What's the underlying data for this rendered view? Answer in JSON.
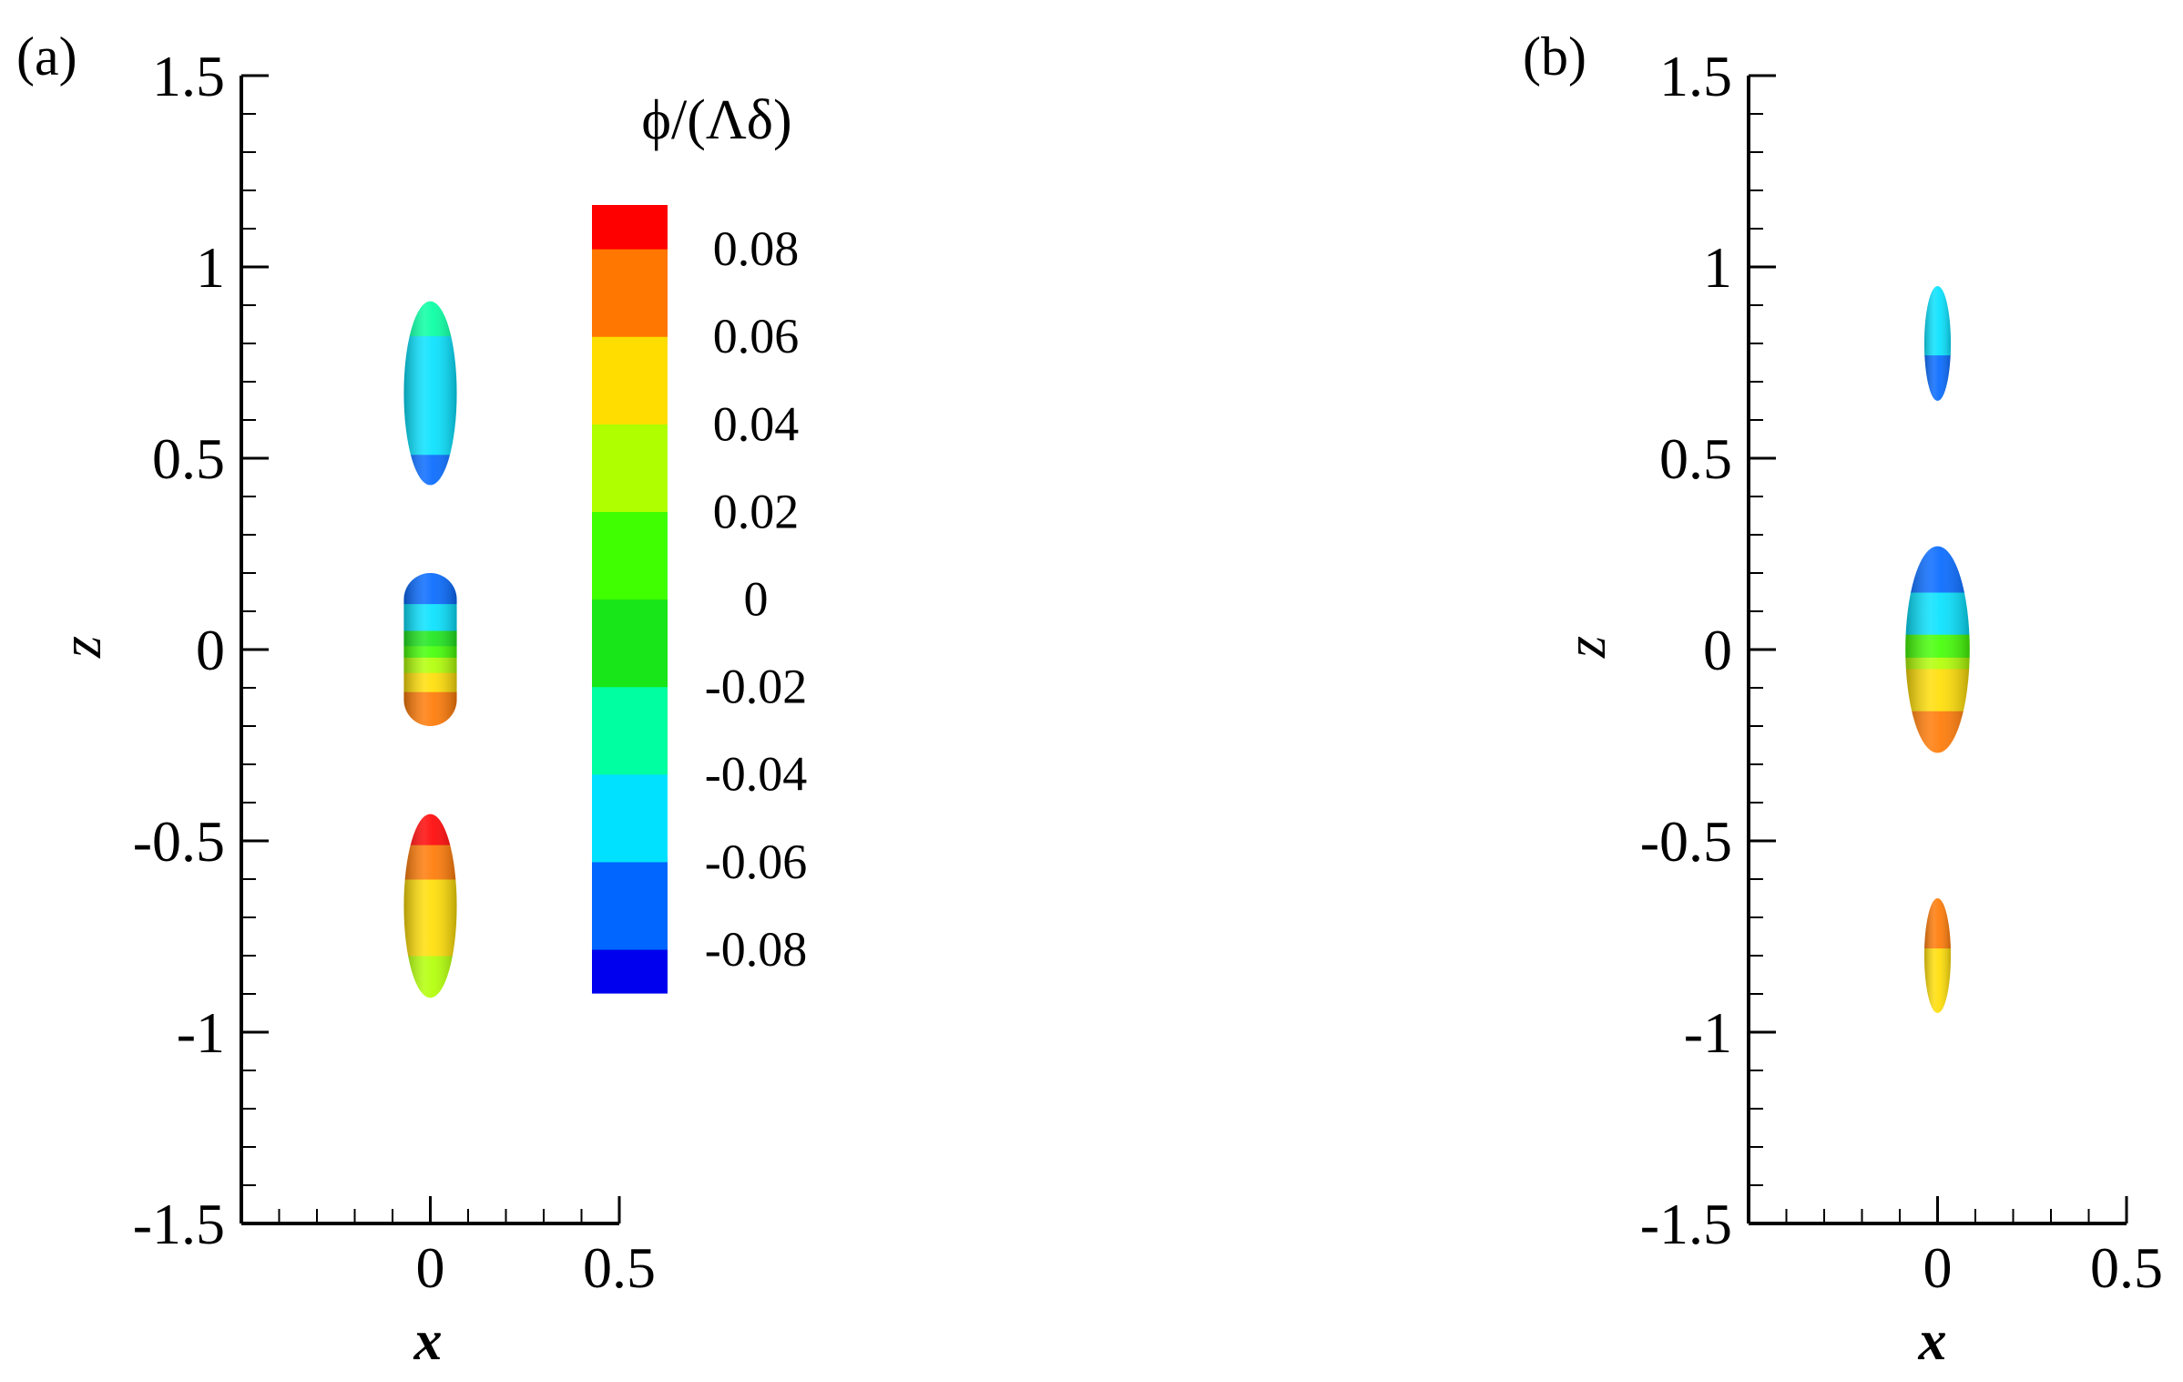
{
  "colorbar": {
    "title": "ϕ/(Λδ)",
    "ticks": [
      "0.08",
      "0.06",
      "0.04",
      "0.02",
      "0",
      "-0.02",
      "-0.04",
      "-0.06",
      "-0.08"
    ],
    "tick_values": [
      0.08,
      0.06,
      0.04,
      0.02,
      0,
      -0.02,
      -0.04,
      -0.06,
      -0.08
    ],
    "levels": [
      -0.09,
      -0.08,
      -0.06,
      -0.04,
      -0.02,
      0,
      0.02,
      0.04,
      0.06,
      0.08,
      0.09
    ],
    "colors": [
      "#0000ee",
      "#0066ff",
      "#00e1ff",
      "#00ffa0",
      "#18e618",
      "#40ff00",
      "#b0ff00",
      "#ffdd00",
      "#ff7700",
      "#ff0000"
    ]
  },
  "chart_data": [
    {
      "type": "contour-isosurface",
      "panel_label": "(a)",
      "xlabel": "x",
      "ylabel": "z",
      "xlim": [
        -0.5,
        0.5
      ],
      "ylim": [
        -1.5,
        1.5
      ],
      "xticks": [
        "0",
        "0.5"
      ],
      "xtick_values": [
        0,
        0.5
      ],
      "yticks": [
        "1.5",
        "1",
        "0.5",
        "0",
        "-0.5",
        "-1",
        "-1.5"
      ],
      "ytick_values": [
        1.5,
        1,
        0.5,
        0,
        -0.5,
        -1,
        -1.5
      ],
      "blobs": [
        {
          "name": "upper",
          "x_center": 0,
          "z_min": 0.43,
          "z_max": 0.91,
          "half_width": 0.07,
          "bands": [
            {
              "z": [
                0.43,
                0.51
              ],
              "level": -0.07
            },
            {
              "z": [
                0.51,
                0.6
              ],
              "level": -0.05
            },
            {
              "z": [
                0.6,
                0.82
              ],
              "level": -0.045
            },
            {
              "z": [
                0.82,
                0.91
              ],
              "level": -0.03
            }
          ]
        },
        {
          "name": "middle",
          "x_center": 0,
          "z_min": -0.2,
          "z_max": 0.2,
          "half_width": 0.07,
          "bands": [
            {
              "z": [
                -0.2,
                -0.11
              ],
              "level": 0.07
            },
            {
              "z": [
                -0.11,
                -0.06
              ],
              "level": 0.05
            },
            {
              "z": [
                -0.06,
                -0.02
              ],
              "level": 0.03
            },
            {
              "z": [
                -0.02,
                0.01
              ],
              "level": 0.01
            },
            {
              "z": [
                0.01,
                0.05
              ],
              "level": -0.01
            },
            {
              "z": [
                0.05,
                0.12
              ],
              "level": -0.05
            },
            {
              "z": [
                0.12,
                0.2
              ],
              "level": -0.07
            }
          ]
        },
        {
          "name": "lower",
          "x_center": 0,
          "z_min": -0.91,
          "z_max": -0.43,
          "half_width": 0.07,
          "bands": [
            {
              "z": [
                -0.91,
                -0.8
              ],
              "level": 0.03
            },
            {
              "z": [
                -0.8,
                -0.6
              ],
              "level": 0.045
            },
            {
              "z": [
                -0.6,
                -0.51
              ],
              "level": 0.07
            },
            {
              "z": [
                -0.51,
                -0.43
              ],
              "level": 0.085
            }
          ]
        }
      ]
    },
    {
      "type": "contour-isosurface",
      "panel_label": "(b)",
      "xlabel": "x",
      "ylabel": "z",
      "xlim": [
        -0.5,
        0.5
      ],
      "ylim": [
        -1.5,
        1.5
      ],
      "xticks": [
        "0",
        "0.5"
      ],
      "xtick_values": [
        0,
        0.5
      ],
      "yticks": [
        "1.5",
        "1",
        "0.5",
        "0",
        "-0.5",
        "-1",
        "-1.5"
      ],
      "ytick_values": [
        1.5,
        1,
        0.5,
        0,
        -0.5,
        -1,
        -1.5
      ],
      "blobs": [
        {
          "name": "upper",
          "x_center": 0,
          "z_min": 0.65,
          "z_max": 0.95,
          "half_width": 0.035,
          "bands": [
            {
              "z": [
                0.65,
                0.77
              ],
              "level": -0.07
            },
            {
              "z": [
                0.77,
                0.95
              ],
              "level": -0.05
            }
          ]
        },
        {
          "name": "middle",
          "x_center": 0,
          "z_min": -0.27,
          "z_max": 0.27,
          "half_width": 0.085,
          "bands": [
            {
              "z": [
                -0.27,
                -0.16
              ],
              "level": 0.07
            },
            {
              "z": [
                -0.16,
                -0.05
              ],
              "level": 0.05
            },
            {
              "z": [
                -0.05,
                -0.02
              ],
              "level": 0.03
            },
            {
              "z": [
                -0.02,
                0.04
              ],
              "level": 0.01
            },
            {
              "z": [
                0.04,
                0.15
              ],
              "level": -0.05
            },
            {
              "z": [
                0.15,
                0.27
              ],
              "level": -0.07
            }
          ]
        },
        {
          "name": "lower",
          "x_center": 0,
          "z_min": -0.95,
          "z_max": -0.65,
          "half_width": 0.035,
          "bands": [
            {
              "z": [
                -0.95,
                -0.78
              ],
              "level": 0.05
            },
            {
              "z": [
                -0.78,
                -0.65
              ],
              "level": 0.07
            }
          ]
        }
      ]
    }
  ]
}
